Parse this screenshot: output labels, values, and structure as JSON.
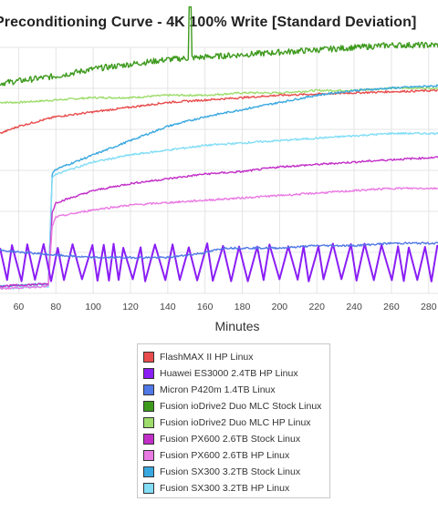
{
  "title": "Preconditioning Curve - 4K 100% Write [Standard Deviation]",
  "chart_data": {
    "type": "line",
    "title": "Preconditioning Curve - 4K 100% Write [Standard Deviation]",
    "xlabel": "Minutes",
    "ylabel": "",
    "xlim": [
      50,
      285
    ],
    "x_ticks": [
      "60",
      "80",
      "100",
      "120",
      "140",
      "160",
      "180",
      "200",
      "220",
      "240",
      "260",
      "280"
    ],
    "grid": true,
    "legend_position": "bottom",
    "series": [
      {
        "name": "FlashMAX II HP Linux",
        "color": "#e84c4c",
        "points": [
          [
            50,
            0.67
          ],
          [
            60,
            0.7
          ],
          [
            80,
            0.74
          ],
          [
            100,
            0.76
          ],
          [
            120,
            0.78
          ],
          [
            140,
            0.8
          ],
          [
            160,
            0.81
          ],
          [
            180,
            0.82
          ],
          [
            200,
            0.83
          ],
          [
            220,
            0.835
          ],
          [
            240,
            0.84
          ],
          [
            260,
            0.845
          ],
          [
            285,
            0.85
          ]
        ]
      },
      {
        "name": "Huawei ES3000 2.4TB HP Linux",
        "color": "#8a1ef5",
        "pattern": "oscillating",
        "low": 0.055,
        "high": 0.2,
        "period": 4
      },
      {
        "name": "Micron P420m 1.4TB Linux",
        "color": "#5078e6",
        "points": [
          [
            50,
            0.18
          ],
          [
            80,
            0.16
          ],
          [
            100,
            0.15
          ],
          [
            120,
            0.15
          ],
          [
            140,
            0.15
          ],
          [
            150,
            0.16
          ],
          [
            160,
            0.17
          ],
          [
            170,
            0.19
          ],
          [
            180,
            0.19
          ],
          [
            200,
            0.19
          ],
          [
            220,
            0.2
          ],
          [
            240,
            0.2
          ],
          [
            260,
            0.21
          ],
          [
            285,
            0.21
          ]
        ]
      },
      {
        "name": "Fusion ioDrive2 Duo MLC Stock Linux",
        "color": "#3d9a1c",
        "points": [
          [
            50,
            0.88
          ],
          [
            60,
            0.89
          ],
          [
            70,
            0.9
          ],
          [
            80,
            0.91
          ],
          [
            100,
            0.94
          ],
          [
            120,
            0.96
          ],
          [
            140,
            0.98
          ],
          [
            160,
            0.99
          ],
          [
            180,
            1.0
          ],
          [
            200,
            1.01
          ],
          [
            220,
            1.02
          ],
          [
            240,
            1.03
          ],
          [
            260,
            1.04
          ],
          [
            285,
            1.04
          ]
        ]
      },
      {
        "name": "Fusion ioDrive2 Duo MLC HP Linux",
        "color": "#9edc6c",
        "points": [
          [
            50,
            0.8
          ],
          [
            60,
            0.8
          ],
          [
            80,
            0.81
          ],
          [
            100,
            0.82
          ],
          [
            120,
            0.82
          ],
          [
            140,
            0.83
          ],
          [
            160,
            0.83
          ],
          [
            180,
            0.84
          ],
          [
            200,
            0.84
          ],
          [
            220,
            0.85
          ],
          [
            240,
            0.85
          ],
          [
            260,
            0.86
          ],
          [
            285,
            0.86
          ]
        ]
      },
      {
        "name": "Fusion PX600 2.6TB Stock Linux",
        "color": "#c22ec8",
        "points": [
          [
            50,
            0.03
          ],
          [
            76,
            0.04
          ],
          [
            78,
            0.34
          ],
          [
            80,
            0.38
          ],
          [
            100,
            0.43
          ],
          [
            120,
            0.46
          ],
          [
            140,
            0.48
          ],
          [
            160,
            0.5
          ],
          [
            180,
            0.51
          ],
          [
            200,
            0.53
          ],
          [
            220,
            0.54
          ],
          [
            240,
            0.55
          ],
          [
            260,
            0.56
          ],
          [
            285,
            0.57
          ]
        ]
      },
      {
        "name": "Fusion PX600 2.6TB HP Linux",
        "color": "#ea7ae3",
        "points": [
          [
            50,
            0.02
          ],
          [
            76,
            0.03
          ],
          [
            78,
            0.28
          ],
          [
            80,
            0.32
          ],
          [
            100,
            0.35
          ],
          [
            120,
            0.37
          ],
          [
            140,
            0.38
          ],
          [
            160,
            0.39
          ],
          [
            180,
            0.4
          ],
          [
            200,
            0.41
          ],
          [
            220,
            0.42
          ],
          [
            240,
            0.43
          ],
          [
            260,
            0.44
          ],
          [
            285,
            0.44
          ]
        ]
      },
      {
        "name": "Fusion SX300 3.2TB Stock Linux",
        "color": "#3aa8e0",
        "points": [
          [
            50,
            0.03
          ],
          [
            76,
            0.04
          ],
          [
            78,
            0.5
          ],
          [
            80,
            0.52
          ],
          [
            100,
            0.58
          ],
          [
            120,
            0.64
          ],
          [
            140,
            0.7
          ],
          [
            160,
            0.74
          ],
          [
            180,
            0.77
          ],
          [
            200,
            0.8
          ],
          [
            220,
            0.83
          ],
          [
            240,
            0.85
          ],
          [
            260,
            0.86
          ],
          [
            285,
            0.87
          ]
        ]
      },
      {
        "name": "Fusion SX300 3.2TB HP Linux",
        "color": "#82ddf5",
        "points": [
          [
            50,
            0.02
          ],
          [
            76,
            0.03
          ],
          [
            78,
            0.48
          ],
          [
            80,
            0.5
          ],
          [
            100,
            0.55
          ],
          [
            120,
            0.58
          ],
          [
            140,
            0.6
          ],
          [
            160,
            0.62
          ],
          [
            180,
            0.63
          ],
          [
            200,
            0.64
          ],
          [
            220,
            0.65
          ],
          [
            240,
            0.66
          ],
          [
            260,
            0.67
          ],
          [
            285,
            0.67
          ]
        ]
      }
    ]
  }
}
